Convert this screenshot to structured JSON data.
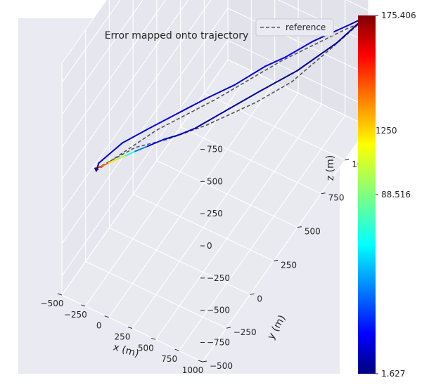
{
  "chart_data": {
    "type": "line",
    "projection": "3d",
    "title": "Error mapped onto trajectory",
    "xlabel": "x (m)",
    "ylabel": "y (m)",
    "zlabel": "z (m)",
    "x_ticks": [
      "−500",
      "−250",
      "0",
      "250",
      "500",
      "750",
      "1000"
    ],
    "y_ticks": [
      "−500",
      "−250",
      "0",
      "250",
      "500",
      "750",
      "1000",
      "1250"
    ],
    "z_ticks": [
      "750",
      "500",
      "250",
      "0",
      "−250",
      "−500",
      "−750"
    ],
    "legend": {
      "entries": [
        {
          "label": "reference",
          "style": "dashed",
          "color": "#555555"
        }
      ],
      "placement": "top-right"
    },
    "colorbar": {
      "colormap": "jet",
      "min": 1.627,
      "max": 175.406,
      "ticks": [
        "175.406",
        "88.516",
        "1.627"
      ]
    },
    "grid": true,
    "background": "#eaeaf2",
    "series": [
      {
        "name": "reference",
        "style": "dashed",
        "color": "#555555",
        "points": [
          [
            -312,
            -320,
            -40
          ],
          [
            -120,
            -100,
            -40
          ],
          [
            90,
            30,
            -40
          ],
          [
            320,
            210,
            -40
          ],
          [
            590,
            470,
            -40
          ],
          [
            760,
            680,
            -40
          ],
          [
            890,
            980,
            -40
          ],
          [
            970,
            1180,
            -40
          ],
          [
            900,
            1120,
            -40
          ],
          [
            560,
            770,
            -40
          ],
          [
            250,
            380,
            -40
          ],
          [
            -50,
            50,
            -40
          ],
          [
            -300,
            -330,
            -40
          ],
          [
            -330,
            -330,
            -40
          ]
        ]
      },
      {
        "name": "",
        "color_by": "error",
        "points": [
          {
            "p": [
              -325,
              -323,
              -40
            ],
            "e": 156
          },
          {
            "p": [
              -285,
              -296,
              -40
            ],
            "e": 142
          },
          {
            "p": [
              -245,
              -256,
              -40
            ],
            "e": 126
          },
          {
            "p": [
              -200,
              -214,
              -40
            ],
            "e": 104
          },
          {
            "p": [
              -152,
              -172,
              -40
            ],
            "e": 88
          },
          {
            "p": [
              -100,
              -122,
              -40
            ],
            "e": 58
          },
          {
            "p": [
              -30,
              -62,
              -40
            ],
            "e": 30
          },
          {
            "p": [
              60,
              18,
              -40
            ],
            "e": 15
          },
          {
            "p": [
              150,
              80,
              -40
            ],
            "e": 10
          },
          {
            "p": [
              250,
              165,
              -40
            ],
            "e": 12
          },
          {
            "p": [
              380,
              325,
              -40
            ],
            "e": 9
          },
          {
            "p": [
              560,
              545,
              -40
            ],
            "e": 7
          },
          {
            "p": [
              740,
              755,
              -40
            ],
            "e": 5
          },
          {
            "p": [
              900,
              1015,
              -40
            ],
            "e": 8
          },
          {
            "p": [
              980,
              1230,
              -40
            ],
            "e": 6
          },
          {
            "p": [
              900,
              1150,
              -40
            ],
            "e": 12
          },
          {
            "p": [
              700,
              960,
              -40
            ],
            "e": 20
          },
          {
            "p": [
              570,
              800,
              -40
            ],
            "e": 24
          },
          {
            "p": [
              460,
              695,
              -40
            ],
            "e": 18
          },
          {
            "p": [
              320,
              510,
              -40
            ],
            "e": 16
          },
          {
            "p": [
              170,
              360,
              -40
            ],
            "e": 14
          },
          {
            "p": [
              20,
              195,
              -40
            ],
            "e": 20
          },
          {
            "p": [
              -120,
              40,
              -40
            ],
            "e": 18
          },
          {
            "p": [
              -250,
              -110,
              -40
            ],
            "e": 20
          },
          {
            "p": [
              -325,
              -285,
              -40
            ],
            "e": 12
          },
          {
            "p": [
              -300,
              -335,
              -40
            ],
            "e": 8
          },
          {
            "p": [
              -325,
              -323,
              -40
            ],
            "e": 10
          }
        ]
      }
    ]
  }
}
